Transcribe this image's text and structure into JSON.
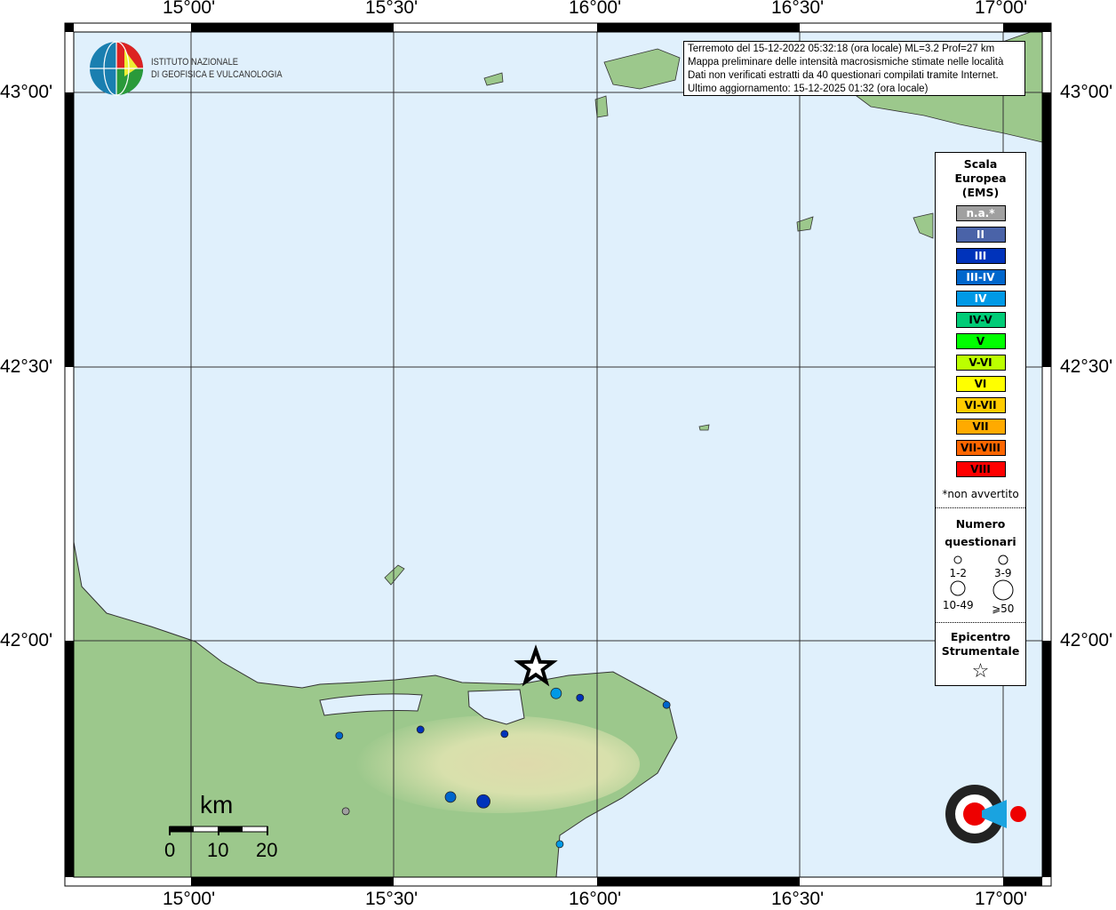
{
  "axes": {
    "lon_labels": [
      "15°00'",
      "15°30'",
      "16°00'",
      "16°30'",
      "17°00'"
    ],
    "lat_labels": [
      "43°00'",
      "42°30'",
      "42°00'"
    ]
  },
  "logo": {
    "line1": "ISTITUTO NAZIONALE",
    "line2": "DI GEOFISICA E VULCANOLOGIA"
  },
  "info": {
    "line1": "Terremoto del 15-12-2022 05:32:18 (ora locale) ML=3.2 Prof=27 km",
    "line2": "Mappa preliminare delle intensità macrosismiche stimate nelle località",
    "line3": "Dati non verificati estratti da 40 questionari compilati tramite Internet.",
    "line4": "Ultimo aggiornamento: 15-12-2025 01:32 (ora locale)"
  },
  "legend": {
    "title1": "Scala",
    "title2": "Europea",
    "title3": "(EMS)",
    "classes": [
      {
        "label": "n.a.*",
        "color": "#a0a0a0",
        "text": "#fff"
      },
      {
        "label": "II",
        "color": "#4a63a8",
        "text": "#fff"
      },
      {
        "label": "III",
        "color": "#0033bb",
        "text": "#fff"
      },
      {
        "label": "III-IV",
        "color": "#0066cc",
        "text": "#fff"
      },
      {
        "label": "IV",
        "color": "#0099e6",
        "text": "#fff"
      },
      {
        "label": "IV-V",
        "color": "#00cc77",
        "text": "#000"
      },
      {
        "label": "V",
        "color": "#00ff00",
        "text": "#000"
      },
      {
        "label": "V-VI",
        "color": "#bbff00",
        "text": "#000"
      },
      {
        "label": "VI",
        "color": "#ffff00",
        "text": "#000"
      },
      {
        "label": "VI-VII",
        "color": "#ffcc00",
        "text": "#000"
      },
      {
        "label": "VII",
        "color": "#ffaa00",
        "text": "#000"
      },
      {
        "label": "VII-VIII",
        "color": "#ff6600",
        "text": "#000"
      },
      {
        "label": "VIII",
        "color": "#ff0000",
        "text": "#000"
      }
    ],
    "note": "*non avvertito",
    "num_title1": "Numero",
    "num_title2": "questionari",
    "sizes": [
      "1-2",
      "3-9",
      "10-49",
      "⩾50"
    ],
    "epi1": "Epicentro",
    "epi2": "Strumentale"
  },
  "scalebar": {
    "unit": "km",
    "ticks": [
      "0",
      "10",
      "20"
    ]
  },
  "epicenter": {
    "lon": 15.849,
    "lat": 41.951
  },
  "points": [
    {
      "lon": 15.899,
      "lat": 41.904,
      "cls": "IV",
      "n": "3-9"
    },
    {
      "lon": 15.958,
      "lat": 41.896,
      "cls": "III",
      "n": "1-2"
    },
    {
      "lon": 16.171,
      "lat": 41.883,
      "cls": "III-IV",
      "n": "1-2"
    },
    {
      "lon": 15.365,
      "lat": 41.827,
      "cls": "III-IV",
      "n": "1-2"
    },
    {
      "lon": 15.565,
      "lat": 41.838,
      "cls": "III",
      "n": "1-2"
    },
    {
      "lon": 15.772,
      "lat": 41.83,
      "cls": "III",
      "n": "1-2"
    },
    {
      "lon": 15.639,
      "lat": 41.715,
      "cls": "III-IV",
      "n": "3-9"
    },
    {
      "lon": 15.72,
      "lat": 41.707,
      "cls": "III",
      "n": "10-49"
    },
    {
      "lon": 15.381,
      "lat": 41.689,
      "cls": "n.a.*",
      "n": "1-2"
    },
    {
      "lon": 15.908,
      "lat": 41.629,
      "cls": "IV",
      "n": "1-2"
    }
  ],
  "colors": {
    "sea": "#e0f0fc",
    "land": "#9cc88c"
  }
}
